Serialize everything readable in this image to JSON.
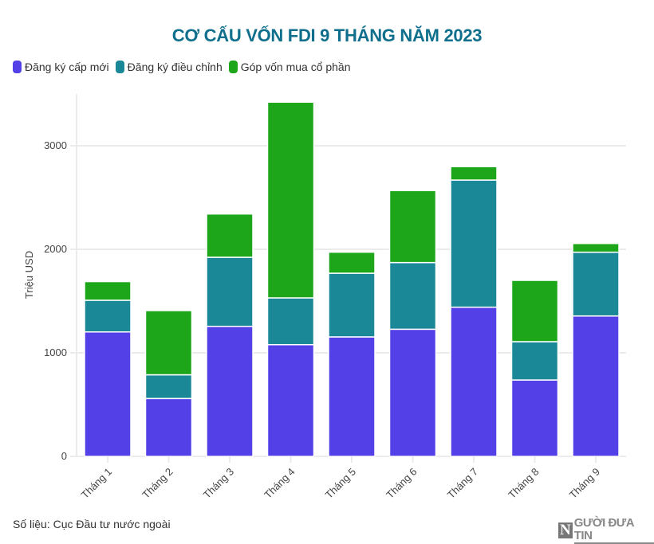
{
  "chart_data": {
    "type": "bar",
    "stacked": true,
    "title": "CƠ CẤU VỐN FDI 9 THÁNG NĂM 2023",
    "xlabel": "",
    "ylabel": "Triệu USD",
    "ylim": [
      0,
      3500
    ],
    "yticks": [
      0,
      1000,
      2000,
      3000
    ],
    "grid": true,
    "legend_position": "top-left",
    "categories": [
      "Tháng 1",
      "Tháng 2",
      "Tháng 3",
      "Tháng 4",
      "Tháng 5",
      "Tháng 6",
      "Tháng 7",
      "Tháng 8",
      "Tháng 9"
    ],
    "series": [
      {
        "name": "Đăng ký cấp mới",
        "color": "#5340e6",
        "values": [
          1202,
          559,
          1256,
          1079,
          1154,
          1228,
          1441,
          738,
          1356
        ]
      },
      {
        "name": "Đăng ký điều chỉnh",
        "color": "#1b8898",
        "values": [
          306,
          229,
          667,
          452,
          615,
          644,
          1228,
          370,
          616
        ]
      },
      {
        "name": "Góp vốn mua cổ phần",
        "color": "#1da61a",
        "values": [
          180,
          620,
          418,
          1890,
          203,
          695,
          129,
          592,
          84
        ]
      }
    ]
  },
  "footer": {
    "source": "Số liệu: Cục Đầu tư nước ngoài",
    "logo_letter": "N",
    "logo_text": "GƯỜI ĐƯA TIN"
  },
  "colors": {
    "title": "#0f6f8c",
    "grid": "#ebebeb"
  }
}
